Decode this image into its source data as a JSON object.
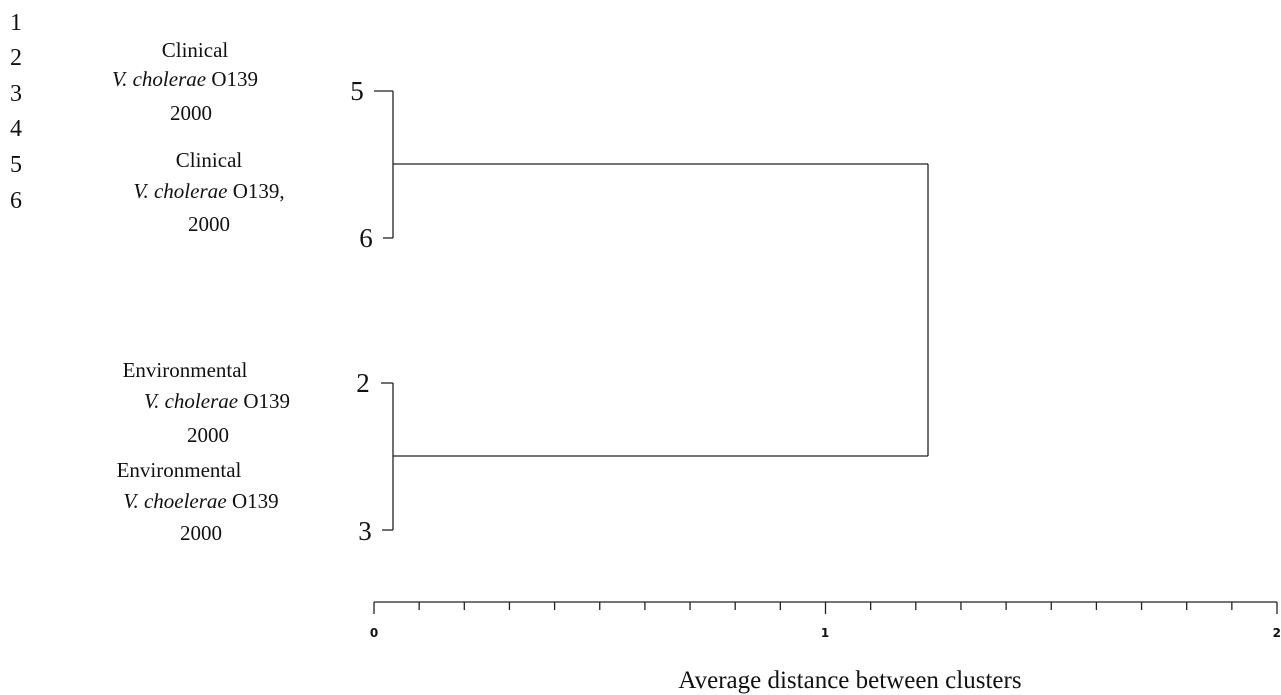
{
  "row_numbers": [
    "1",
    "2",
    "3",
    "4",
    "5",
    "6"
  ],
  "groups": [
    {
      "line1": "Clinical",
      "line2_italic": "V. cholerae",
      "line2_rest": " O139",
      "line3": "2000"
    },
    {
      "line1": "Clinical",
      "line2_italic": "V. cholerae",
      "line2_rest": " O139,",
      "line3": "2000"
    },
    {
      "line1": "Environmental",
      "line2_italic": "V. cholerae",
      "line2_rest": " O139",
      "line3": "2000"
    },
    {
      "line1": "Environmental",
      "line2_italic": "V. choelerae",
      "line2_rest": " O139",
      "line3": "2000"
    }
  ],
  "dendrogram": {
    "leaves": [
      "5",
      "6",
      "2",
      "3"
    ],
    "clusters": [
      {
        "members": [
          "5",
          "6"
        ],
        "height": 0
      },
      {
        "members": [
          "2",
          "3"
        ],
        "height": 0
      },
      {
        "members": [
          "5",
          "6",
          "2",
          "3"
        ],
        "height": 1.23
      }
    ]
  },
  "axis": {
    "min": 0,
    "max": 2,
    "major_ticks": [
      0,
      1,
      2
    ],
    "tick_labels": [
      "0",
      "1",
      "2"
    ],
    "minor_step": 0.1,
    "title": "Average distance between clusters"
  }
}
